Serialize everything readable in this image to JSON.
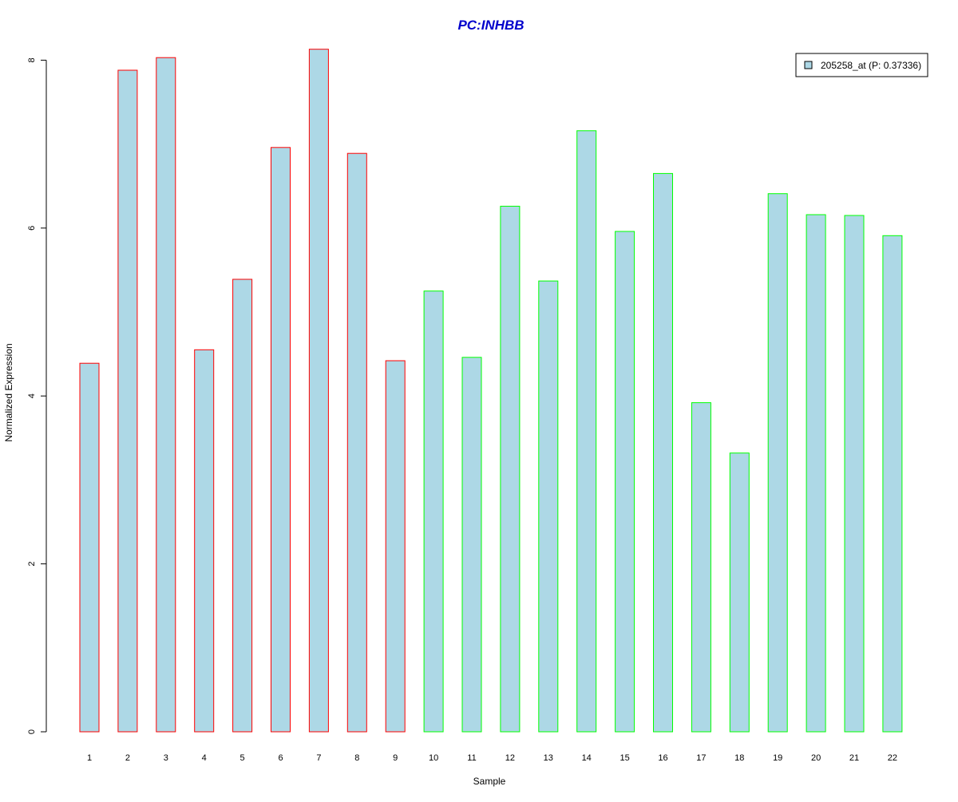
{
  "chart_data": {
    "type": "bar",
    "title": "PC:INHBB",
    "title_color": "#0000CC",
    "xlabel": "Sample",
    "ylabel": "Normalized Expression",
    "categories": [
      "1",
      "2",
      "3",
      "4",
      "5",
      "6",
      "7",
      "8",
      "9",
      "10",
      "11",
      "12",
      "13",
      "14",
      "15",
      "16",
      "17",
      "18",
      "19",
      "20",
      "21",
      "22"
    ],
    "ylim": [
      0,
      8.15
    ],
    "yticks": [
      0,
      2,
      4,
      6,
      8
    ],
    "grid": false,
    "legend_position": "top-right",
    "series": [
      {
        "name": "205258_at (P: 0.37336)",
        "fill": "#ADD8E6",
        "values": [
          4.39,
          7.88,
          8.03,
          4.55,
          5.39,
          6.96,
          8.13,
          6.89,
          4.42,
          5.25,
          4.46,
          6.26,
          5.37,
          7.16,
          5.96,
          6.65,
          3.92,
          3.32,
          6.41,
          6.16,
          6.15,
          5.91
        ],
        "border_colors": [
          "#FF0000",
          "#FF0000",
          "#FF0000",
          "#FF0000",
          "#FF0000",
          "#FF0000",
          "#FF0000",
          "#FF0000",
          "#FF0000",
          "#00FF00",
          "#00FF00",
          "#00FF00",
          "#00FF00",
          "#00FF00",
          "#00FF00",
          "#00FF00",
          "#00FF00",
          "#00FF00",
          "#00FF00",
          "#00FF00",
          "#00FF00",
          "#00FF00"
        ]
      }
    ]
  }
}
